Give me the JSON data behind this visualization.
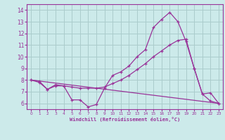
{
  "xlabel": "Windchill (Refroidissement éolien,°C)",
  "bg_color": "#cceaea",
  "grid_color": "#aacccc",
  "line_color": "#993399",
  "xlim": [
    -0.5,
    23.5
  ],
  "ylim": [
    5.5,
    14.5
  ],
  "xticks": [
    0,
    1,
    2,
    3,
    4,
    5,
    6,
    7,
    8,
    9,
    10,
    11,
    12,
    13,
    14,
    15,
    16,
    17,
    18,
    19,
    20,
    21,
    22,
    23
  ],
  "yticks": [
    6,
    7,
    8,
    9,
    10,
    11,
    12,
    13,
    14
  ],
  "line1_x": [
    0,
    1,
    2,
    3,
    4,
    5,
    6,
    7,
    8,
    9,
    10,
    11,
    12,
    13,
    14,
    15,
    16,
    17,
    18,
    19,
    20,
    21,
    22,
    23
  ],
  "line1_y": [
    8.0,
    7.9,
    7.2,
    7.6,
    7.5,
    6.3,
    6.3,
    5.7,
    5.9,
    7.3,
    8.4,
    8.7,
    9.2,
    10.0,
    10.6,
    12.5,
    13.2,
    13.8,
    13.0,
    11.3,
    9.0,
    6.8,
    6.9,
    6.0
  ],
  "line2_x": [
    0,
    1,
    2,
    3,
    4,
    5,
    6,
    7,
    8,
    9,
    10,
    11,
    12,
    13,
    14,
    15,
    16,
    17,
    18,
    19,
    20,
    21,
    22,
    23
  ],
  "line2_y": [
    8.0,
    7.8,
    7.2,
    7.5,
    7.5,
    7.4,
    7.3,
    7.3,
    7.3,
    7.4,
    7.7,
    8.0,
    8.4,
    8.9,
    9.4,
    10.0,
    10.5,
    11.0,
    11.4,
    11.5,
    9.0,
    6.8,
    6.2,
    6.0
  ],
  "line3_x": [
    0,
    23
  ],
  "line3_y": [
    8.0,
    6.0
  ]
}
